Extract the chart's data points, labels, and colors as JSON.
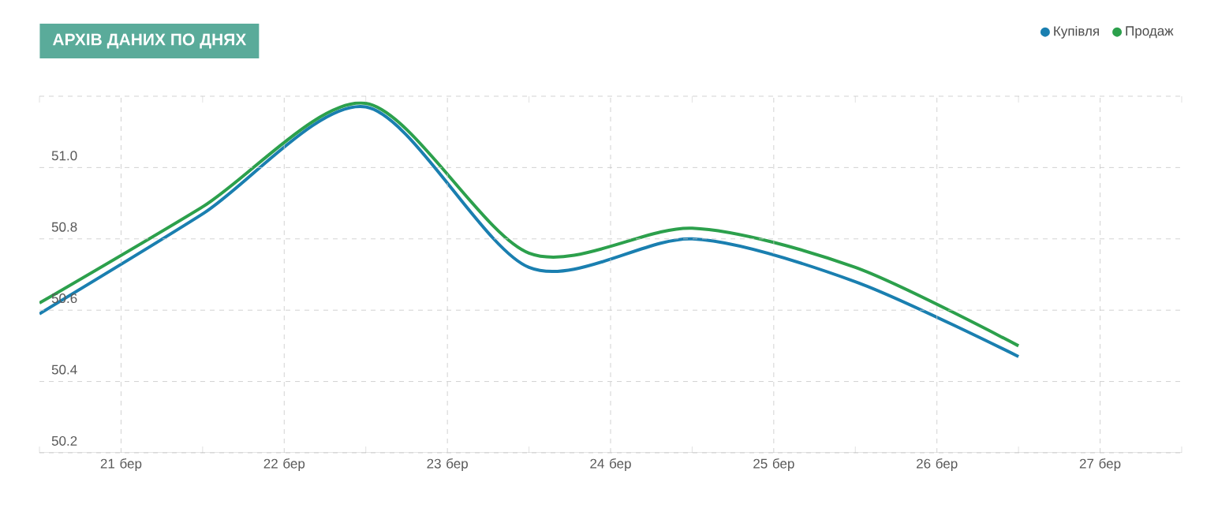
{
  "chart_data": {
    "type": "line",
    "title": "АРХІВ ДАНИХ ПО ДНЯХ",
    "x": [
      20.5,
      21.5,
      22.5,
      23.5,
      24.5,
      25.5,
      26.5
    ],
    "series": [
      {
        "name": "Купівля",
        "color": "#1a7fb0",
        "values": [
          50.59,
          50.87,
          51.17,
          50.72,
          50.8,
          50.68,
          50.47
        ]
      },
      {
        "name": "Продаж",
        "color": "#2ca04c",
        "values": [
          50.62,
          50.89,
          51.18,
          50.76,
          50.83,
          50.72,
          50.5
        ]
      }
    ],
    "xlim": [
      20.5,
      27.5
    ],
    "xticks": [
      {
        "value": 21,
        "label": "21 бер"
      },
      {
        "value": 22,
        "label": "22 бер"
      },
      {
        "value": 23,
        "label": "23 бер"
      },
      {
        "value": 24,
        "label": "24 бер"
      },
      {
        "value": 25,
        "label": "25 бер"
      },
      {
        "value": 26,
        "label": "26 бер"
      },
      {
        "value": 27,
        "label": "27 бер"
      }
    ],
    "ylim": [
      50.2,
      51.2
    ],
    "yticks": [
      {
        "value": 50.2,
        "label": "50.2"
      },
      {
        "value": 50.4,
        "label": "50.4"
      },
      {
        "value": 50.6,
        "label": "50.6"
      },
      {
        "value": 50.8,
        "label": "50.8"
      },
      {
        "value": 51.0,
        "label": "51.0"
      },
      {
        "value": 51.2,
        "label": null
      }
    ],
    "grid": true,
    "legend": "top right",
    "marker": "none",
    "line_style": "solid"
  }
}
